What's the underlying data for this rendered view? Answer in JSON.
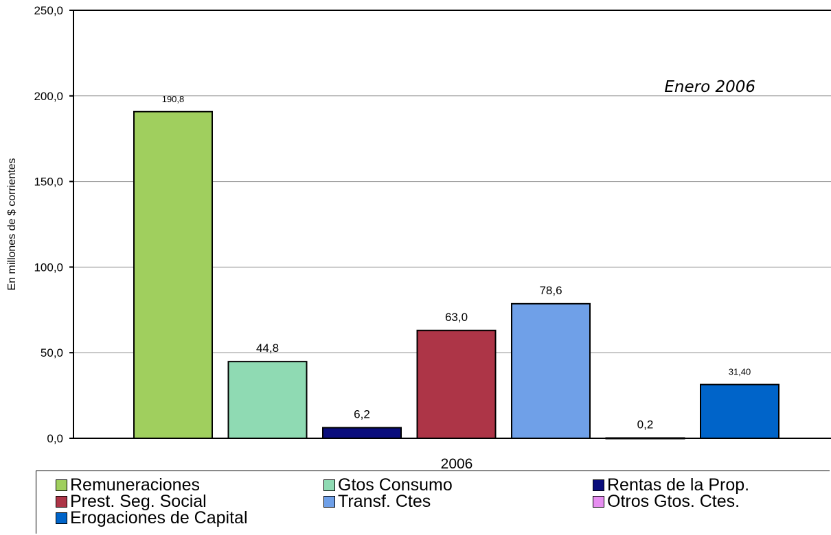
{
  "chart_data": {
    "type": "bar",
    "annotation": "Enero 2006",
    "title": "",
    "xlabel": "2006",
    "ylabel": "En millones de $ corrientes",
    "ylim": [
      0,
      250
    ],
    "yticks": [
      "0,0",
      "50,0",
      "100,0",
      "150,0",
      "200,0",
      "250,0"
    ],
    "grid": true,
    "legend_position": "bottom",
    "series": [
      {
        "name": "Remuneraciones",
        "value": 190.8,
        "label": "190,8",
        "color": "#a0cf5e"
      },
      {
        "name": "Gtos Consumo",
        "value": 44.8,
        "label": "44,8",
        "color": "#8fdab3"
      },
      {
        "name": "Rentas de la Prop.",
        "value": 6.2,
        "label": "6,2",
        "color": "#0a0d7c"
      },
      {
        "name": "Prest. Seg. Social",
        "value": 63.0,
        "label": "63,0",
        "color": "#ad3547"
      },
      {
        "name": "Transf. Ctes",
        "value": 78.6,
        "label": "78,6",
        "color": "#6fa0e8"
      },
      {
        "name": "Otros Gtos. Ctes.",
        "value": 0.2,
        "label": "0,2",
        "color": "#e68ef0"
      },
      {
        "name": "Erogaciones de Capital",
        "value": 31.4,
        "label": "31,40",
        "color": "#0064c9"
      }
    ]
  }
}
